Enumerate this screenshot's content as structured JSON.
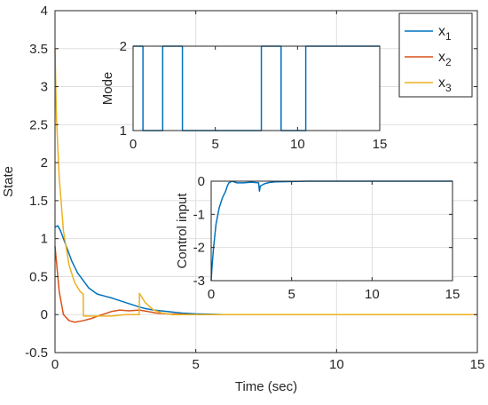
{
  "chart_data": [
    {
      "type": "line",
      "role": "main",
      "title": "",
      "xlabel": "Time (sec)",
      "ylabel": "State",
      "xlim": [
        0,
        15
      ],
      "ylim": [
        -0.5,
        4
      ],
      "xticks": [
        "0",
        "5",
        "10",
        "15"
      ],
      "yticks": [
        "-0.5",
        "0",
        "0.5",
        "1",
        "1.5",
        "2",
        "2.5",
        "3",
        "3.5",
        "4"
      ],
      "grid": true,
      "legend": {
        "placement": "top-right",
        "entries": [
          "x1",
          "x2",
          "x3"
        ]
      },
      "series": [
        {
          "name": "x1",
          "color": "#0072BD",
          "x": [
            0,
            0.1,
            0.2,
            0.4,
            0.6,
            0.8,
            1.0,
            1.2,
            1.5,
            1.8,
            2.0,
            2.5,
            3.0,
            3.2,
            3.5,
            4.0,
            4.5,
            5.0,
            5.5,
            6.0,
            7.0,
            8.0,
            10.0,
            15.0
          ],
          "y": [
            1.15,
            1.17,
            1.1,
            0.9,
            0.7,
            0.55,
            0.45,
            0.35,
            0.27,
            0.24,
            0.22,
            0.16,
            0.1,
            0.08,
            0.06,
            0.04,
            0.02,
            0.01,
            0.005,
            0.0,
            0.0,
            0.0,
            0.0,
            0.0
          ]
        },
        {
          "name": "x2",
          "color": "#D95319",
          "x": [
            0,
            0.05,
            0.15,
            0.3,
            0.5,
            0.7,
            1.0,
            1.3,
            1.6,
            2.0,
            2.3,
            2.6,
            3.0,
            3.3,
            3.6,
            4.0,
            5.0,
            6.0,
            15.0
          ],
          "y": [
            0.9,
            0.7,
            0.3,
            0.0,
            -0.08,
            -0.1,
            -0.08,
            -0.05,
            -0.01,
            0.04,
            0.06,
            0.05,
            0.06,
            0.04,
            0.02,
            0.01,
            0.0,
            0.0,
            0.0
          ]
        },
        {
          "name": "x3",
          "color": "#EDB120",
          "x": [
            0,
            0.05,
            0.15,
            0.3,
            0.5,
            0.7,
            0.9,
            1.0,
            1.01,
            1.3,
            1.6,
            2.0,
            2.5,
            2.99,
            3.0,
            3.2,
            3.5,
            3.8,
            4.2,
            5.0,
            6.0,
            15.0
          ],
          "y": [
            3.5,
            2.6,
            1.8,
            1.1,
            0.65,
            0.42,
            0.3,
            0.27,
            -0.02,
            -0.02,
            -0.02,
            -0.02,
            0.0,
            0.0,
            0.28,
            0.16,
            0.06,
            0.02,
            0.0,
            0.0,
            0.0,
            0.0
          ]
        }
      ]
    },
    {
      "type": "line",
      "role": "inset",
      "title": "",
      "xlabel": "",
      "ylabel": "Mode",
      "xlim": [
        0,
        15
      ],
      "ylim": [
        1,
        2
      ],
      "xticks": [
        "0",
        "5",
        "10",
        "15"
      ],
      "yticks": [
        "1",
        "2"
      ],
      "grid": false,
      "series": [
        {
          "color": "#0072BD",
          "step": true,
          "x": [
            0,
            0.6,
            0.6,
            1.8,
            1.8,
            3.0,
            3.0,
            5.0,
            5.0,
            7.8,
            7.8,
            9.0,
            9.0,
            9.8,
            9.8,
            10.5,
            10.5,
            15.0
          ],
          "y": [
            2,
            2,
            1,
            1,
            2,
            2,
            1,
            1,
            1,
            1,
            2,
            2,
            1,
            1,
            1,
            1,
            2,
            2
          ]
        }
      ]
    },
    {
      "type": "line",
      "role": "inset",
      "title": "",
      "xlabel": "",
      "ylabel": "Control input",
      "xlim": [
        0,
        15
      ],
      "ylim": [
        -3,
        0
      ],
      "xticks": [
        "0",
        "5",
        "10",
        "15"
      ],
      "yticks": [
        "-3",
        "-2",
        "-1",
        "0"
      ],
      "grid": true,
      "series": [
        {
          "color": "#0072BD",
          "x": [
            0,
            0.05,
            0.15,
            0.3,
            0.5,
            0.7,
            0.9,
            1.0,
            1.1,
            1.3,
            1.6,
            2.0,
            2.5,
            2.95,
            3.0,
            3.05,
            3.3,
            3.6,
            4.0,
            5.0,
            6.0,
            8.0,
            15.0
          ],
          "y": [
            -3.0,
            -2.6,
            -2.0,
            -1.3,
            -0.8,
            -0.5,
            -0.3,
            -0.15,
            -0.05,
            0.0,
            -0.05,
            -0.05,
            -0.03,
            -0.05,
            -0.3,
            -0.15,
            -0.08,
            -0.04,
            -0.02,
            -0.01,
            0.0,
            0.0,
            0.0
          ]
        }
      ]
    }
  ]
}
